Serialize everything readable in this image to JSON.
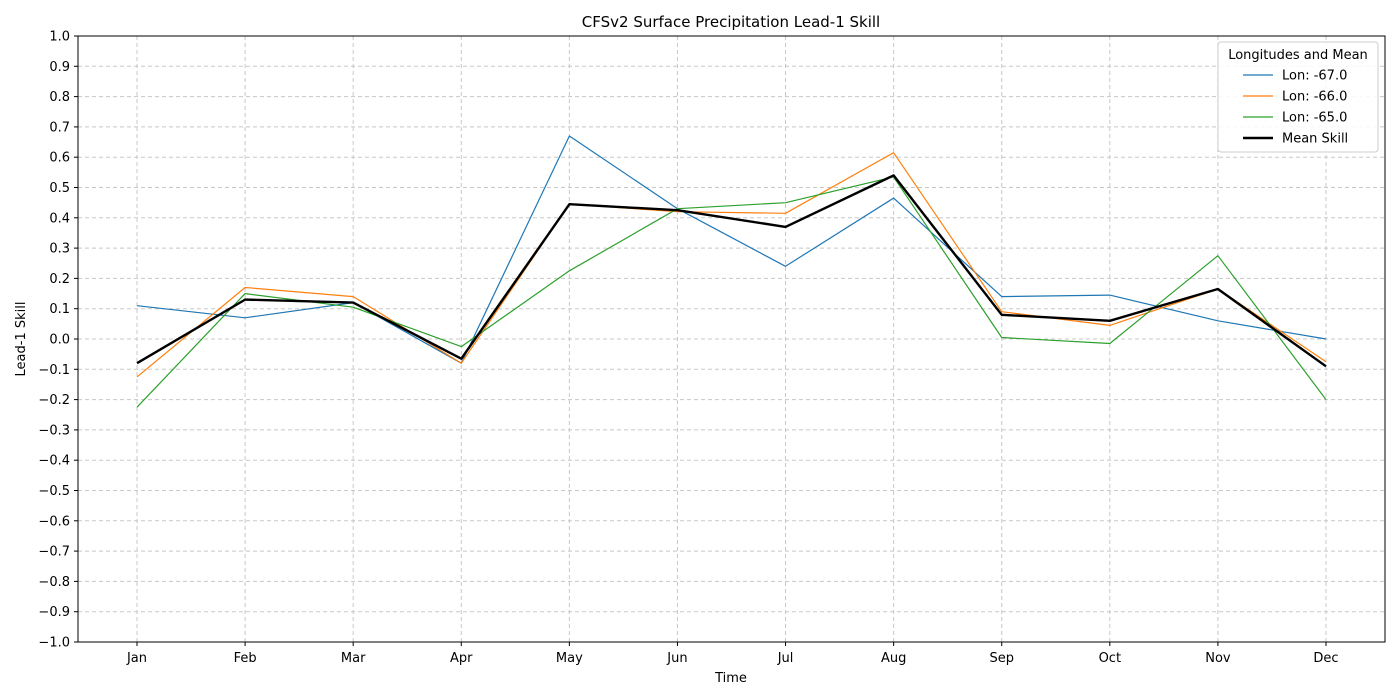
{
  "chart_data": {
    "type": "line",
    "title": "CFSv2 Surface Precipitation Lead-1 Skill",
    "xlabel": "Time",
    "ylabel": "Lead-1 Skill",
    "categories": [
      "Jan",
      "Feb",
      "Mar",
      "Apr",
      "May",
      "Jun",
      "Jul",
      "Aug",
      "Sep",
      "Oct",
      "Nov",
      "Dec"
    ],
    "ylim": [
      -1.0,
      1.0
    ],
    "yticks": [
      -1.0,
      -0.9,
      -0.8,
      -0.7,
      -0.6,
      -0.5,
      -0.4,
      -0.3,
      -0.2,
      -0.1,
      0.0,
      0.1,
      0.2,
      0.3,
      0.4,
      0.5,
      0.6,
      0.7,
      0.8,
      0.9,
      1.0
    ],
    "ytick_labels": [
      "−1.0",
      "−0.9",
      "−0.8",
      "−0.7",
      "−0.6",
      "−0.5",
      "−0.4",
      "−0.3",
      "−0.2",
      "−0.1",
      "0.0",
      "0.1",
      "0.2",
      "0.3",
      "0.4",
      "0.5",
      "0.6",
      "0.7",
      "0.8",
      "0.9",
      "1.0"
    ],
    "grid": true,
    "legend": {
      "title": "Longitudes and Mean",
      "placement": "top-right"
    },
    "series": [
      {
        "name": "Lon: -67.0",
        "color": "#1f77b4",
        "width": "thin",
        "values": [
          0.11,
          0.07,
          0.12,
          -0.08,
          0.67,
          0.43,
          0.24,
          0.465,
          0.14,
          0.145,
          0.06,
          0.0
        ]
      },
      {
        "name": "Lon: -66.0",
        "color": "#ff7f0e",
        "width": "thin",
        "values": [
          -0.125,
          0.17,
          0.14,
          -0.08,
          0.445,
          0.42,
          0.415,
          0.615,
          0.09,
          0.045,
          0.165,
          -0.075
        ]
      },
      {
        "name": "Lon: -65.0",
        "color": "#2ca02c",
        "width": "thin",
        "values": [
          -0.225,
          0.15,
          0.105,
          -0.025,
          0.225,
          0.43,
          0.45,
          0.535,
          0.005,
          -0.015,
          0.275,
          -0.2
        ]
      },
      {
        "name": "Mean Skill",
        "color": "#000000",
        "width": "thick",
        "values": [
          -0.08,
          0.13,
          0.12,
          -0.065,
          0.445,
          0.425,
          0.37,
          0.54,
          0.08,
          0.06,
          0.165,
          -0.09
        ]
      }
    ]
  }
}
